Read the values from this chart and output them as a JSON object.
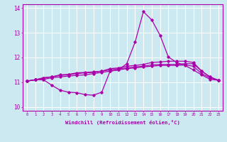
{
  "xlabel": "Windchill (Refroidissement éolien,°C)",
  "x": [
    0,
    1,
    2,
    3,
    4,
    5,
    6,
    7,
    8,
    9,
    10,
    11,
    12,
    13,
    14,
    15,
    16,
    17,
    18,
    19,
    20,
    21,
    22,
    23
  ],
  "line1": [
    11.05,
    11.1,
    11.1,
    10.88,
    10.68,
    10.6,
    10.58,
    10.5,
    10.48,
    10.6,
    11.45,
    11.5,
    11.75,
    12.62,
    13.85,
    13.52,
    12.9,
    12.02,
    11.8,
    11.68,
    11.5,
    11.3,
    11.12,
    11.08
  ],
  "line2": [
    11.05,
    11.1,
    11.18,
    11.22,
    11.3,
    11.32,
    11.38,
    11.4,
    11.42,
    11.45,
    11.5,
    11.55,
    11.58,
    11.62,
    11.65,
    11.7,
    11.72,
    11.72,
    11.72,
    11.75,
    11.75,
    11.45,
    11.22,
    11.08
  ],
  "line3": [
    11.05,
    11.1,
    11.18,
    11.22,
    11.28,
    11.3,
    11.35,
    11.38,
    11.4,
    11.45,
    11.55,
    11.58,
    11.65,
    11.68,
    11.72,
    11.8,
    11.82,
    11.85,
    11.85,
    11.85,
    11.8,
    11.45,
    11.22,
    11.08
  ],
  "line4": [
    11.05,
    11.1,
    11.12,
    11.18,
    11.22,
    11.25,
    11.28,
    11.3,
    11.35,
    11.4,
    11.45,
    11.5,
    11.55,
    11.58,
    11.62,
    11.65,
    11.68,
    11.68,
    11.68,
    11.7,
    11.65,
    11.35,
    11.18,
    11.08
  ],
  "line_color": "#aa00aa",
  "bg_color": "#cce8f0",
  "grid_color": "#aaccdd",
  "ylim": [
    9.85,
    14.15
  ],
  "yticks": [
    10,
    11,
    12,
    13,
    14
  ],
  "xlim": [
    -0.5,
    23.5
  ],
  "xticks": [
    0,
    1,
    2,
    3,
    4,
    5,
    6,
    7,
    8,
    9,
    10,
    11,
    12,
    13,
    14,
    15,
    16,
    17,
    18,
    19,
    20,
    21,
    22,
    23
  ]
}
